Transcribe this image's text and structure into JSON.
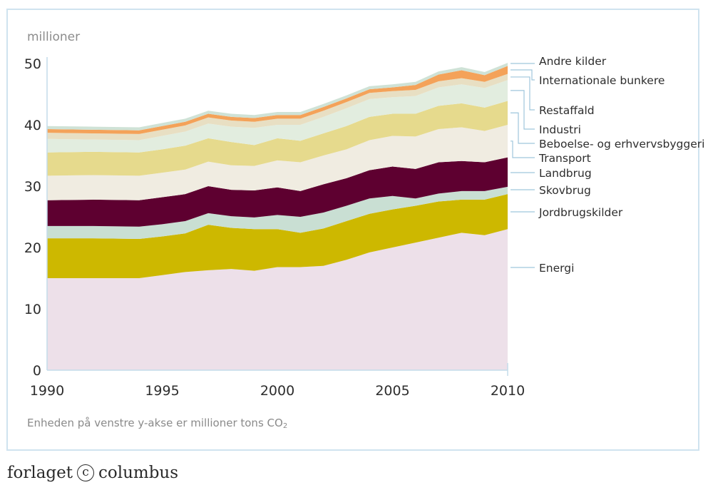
{
  "chart_data": {
    "type": "area",
    "stacked": true,
    "unit_label": "millioner",
    "note": "Enheden på venstre y-akse er millioner tons CO",
    "note_subscript": "2",
    "ylim": [
      0,
      51
    ],
    "yticks": [
      0,
      10,
      20,
      30,
      40,
      50
    ],
    "xlim": [
      1990,
      2010
    ],
    "xticks": [
      1990,
      1995,
      2000,
      2005,
      2010
    ],
    "x": [
      1990,
      1992,
      1994,
      1995,
      1996,
      1997,
      1998,
      1999,
      2000,
      2001,
      2002,
      2003,
      2004,
      2005,
      2006,
      2007,
      2008,
      2009,
      2010
    ],
    "series": [
      {
        "name": "Energi",
        "color": "#ede0e9",
        "values": [
          15.0,
          15.0,
          15.0,
          15.5,
          16.0,
          16.3,
          16.5,
          16.2,
          16.8,
          16.8,
          17.0,
          18.0,
          19.2,
          20.0,
          20.8,
          21.6,
          22.4,
          22.0,
          23.0
        ]
      },
      {
        "name": "Jordbrugskilder",
        "color": "#cdb800",
        "values": [
          6.5,
          6.5,
          6.4,
          6.3,
          6.3,
          7.4,
          6.7,
          6.8,
          6.2,
          5.6,
          6.1,
          6.3,
          6.3,
          6.2,
          6.0,
          5.9,
          5.4,
          5.8,
          5.7
        ]
      },
      {
        "name": "Skovbrug",
        "color": "#c9dfd3",
        "values": [
          2.0,
          2.0,
          2.0,
          2.0,
          2.0,
          1.9,
          1.9,
          1.9,
          2.3,
          2.6,
          2.6,
          2.5,
          2.5,
          2.2,
          1.2,
          1.3,
          1.4,
          1.4,
          1.2
        ]
      },
      {
        "name": "Landbrug",
        "color": "#5e0030",
        "values": [
          4.2,
          4.3,
          4.3,
          4.4,
          4.4,
          4.4,
          4.3,
          4.4,
          4.5,
          4.2,
          4.6,
          4.5,
          4.6,
          4.8,
          4.8,
          5.1,
          4.9,
          4.7,
          4.8
        ]
      },
      {
        "name": "Transport",
        "color": "#f0ece1",
        "values": [
          4.0,
          4.0,
          4.0,
          4.0,
          4.0,
          4.0,
          4.0,
          4.0,
          4.4,
          4.7,
          4.7,
          4.7,
          4.9,
          5.0,
          5.3,
          5.4,
          5.5,
          5.1,
          5.3
        ]
      },
      {
        "name": "Beboelse- og erhvervsbyggeri",
        "color": "#e6da8d",
        "values": [
          3.8,
          3.8,
          3.8,
          3.8,
          3.9,
          3.8,
          3.8,
          3.4,
          3.6,
          3.5,
          3.6,
          3.8,
          3.8,
          3.6,
          3.7,
          3.8,
          3.9,
          3.8,
          3.9
        ]
      },
      {
        "name": "Industri",
        "color": "#e2eddf",
        "values": [
          2.2,
          2.0,
          2.0,
          2.2,
          2.3,
          2.4,
          2.5,
          2.8,
          2.2,
          2.6,
          2.7,
          2.9,
          2.9,
          2.7,
          2.9,
          3.0,
          3.1,
          3.2,
          3.4
        ]
      },
      {
        "name": "Restaffald",
        "color": "#e8dfc3",
        "values": [
          1.0,
          1.0,
          1.0,
          1.0,
          1.0,
          1.0,
          1.0,
          1.0,
          1.0,
          1.0,
          1.0,
          1.0,
          1.0,
          1.0,
          1.0,
          1.0,
          1.0,
          1.0,
          1.0
        ]
      },
      {
        "name": "Internationale bunkere",
        "color": "#f4a259",
        "values": [
          0.6,
          0.6,
          0.6,
          0.6,
          0.6,
          0.6,
          0.6,
          0.6,
          0.6,
          0.6,
          0.6,
          0.6,
          0.6,
          0.6,
          0.8,
          1.1,
          1.3,
          1.1,
          1.3
        ]
      },
      {
        "name": "Andre kilder",
        "color": "#cfe2d6",
        "values": [
          0.5,
          0.5,
          0.5,
          0.5,
          0.5,
          0.5,
          0.5,
          0.5,
          0.5,
          0.5,
          0.5,
          0.5,
          0.5,
          0.5,
          0.5,
          0.5,
          0.5,
          0.5,
          0.5
        ]
      }
    ]
  },
  "publisher": {
    "name_left": "forlaget",
    "name_right": "columbus",
    "copyright_symbol": "c"
  }
}
